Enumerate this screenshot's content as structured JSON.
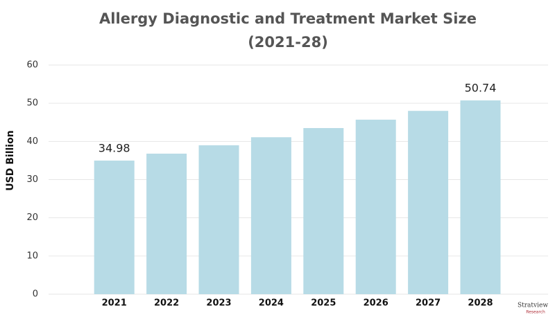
{
  "chart_data": {
    "type": "bar",
    "title": [
      "Allergy Diagnostic and Treatment Market Size",
      "(2021-28)"
    ],
    "y_label": "USD Billion",
    "categories": [
      "2021",
      "2022",
      "2023",
      "2024",
      "2025",
      "2026",
      "2027",
      "2028"
    ],
    "values": [
      34.98,
      36.8,
      39.0,
      41.1,
      43.5,
      45.7,
      48.0,
      50.74
    ],
    "value_labels": [
      "34.98",
      null,
      null,
      null,
      null,
      null,
      null,
      "50.74"
    ],
    "color": "#b7dbe6",
    "ylim": [
      0,
      60
    ],
    "yticks": [
      0,
      10,
      20,
      30,
      40,
      50,
      60
    ],
    "grid": true,
    "logo": {
      "name": "Stratview",
      "sub": "Research"
    }
  }
}
